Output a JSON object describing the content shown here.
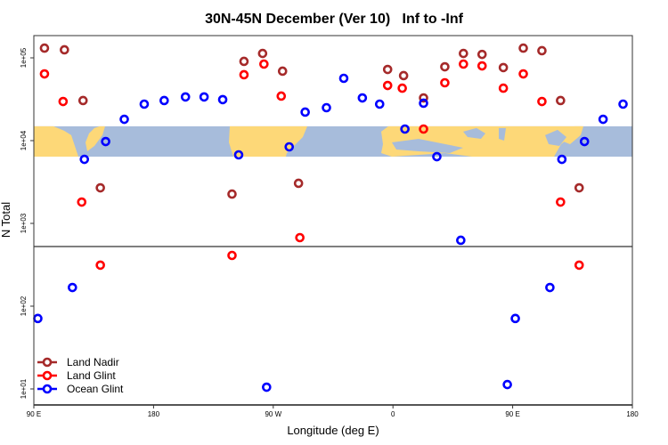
{
  "chart_data": {
    "type": "scatter",
    "title": "30N-45N December (Ver 10)   Inf to -Inf",
    "xlabel": "Longitude (deg E)",
    "ylabel": "N Total",
    "xlim": [
      90,
      540
    ],
    "ylim_log10": [
      0.806,
      5.27
    ],
    "yscale": "log",
    "x_ticks": [
      {
        "value": 90,
        "label": "90 E"
      },
      {
        "value": 180,
        "label": "180"
      },
      {
        "value": 270,
        "label": "90 W"
      },
      {
        "value": 360,
        "label": "0"
      },
      {
        "value": 450,
        "label": "90 E"
      },
      {
        "value": 540,
        "label": "180"
      }
    ],
    "y_ticks": [
      {
        "value": 100000,
        "label": "1e+05"
      },
      {
        "value": 10000,
        "label": "1e+04"
      },
      {
        "value": 1000,
        "label": "1e+03"
      },
      {
        "value": 100,
        "label": "1e+02"
      },
      {
        "value": 10,
        "label": "1e+01"
      }
    ],
    "reference_line_y": 525,
    "map_band": {
      "lat_range": "30N-45N",
      "n_range": [
        6400,
        14900
      ],
      "land_color": "#fdd878",
      "ocean_color": "#a7bcdb"
    },
    "legend_position": "bottom-left",
    "series": [
      {
        "name": "Land Nadir",
        "color": "#a52a2a",
        "points": [
          [
            98,
            131000
          ],
          [
            113,
            125000
          ],
          [
            127,
            30500
          ],
          [
            140,
            2690
          ],
          [
            239,
            2260
          ],
          [
            248,
            90600
          ],
          [
            262,
            113000
          ],
          [
            277,
            69000
          ],
          [
            289,
            3050
          ],
          [
            356,
            72400
          ],
          [
            368,
            61000
          ],
          [
            383,
            32800
          ],
          [
            399,
            78000
          ],
          [
            413,
            113000
          ],
          [
            427,
            110000
          ],
          [
            443,
            76300
          ],
          [
            458,
            131000
          ],
          [
            472,
            122000
          ],
          [
            486,
            30500
          ],
          [
            500,
            2690
          ]
        ]
      },
      {
        "name": "Land Glint",
        "color": "#ff0000",
        "points": [
          [
            98,
            64000
          ],
          [
            112,
            29700
          ],
          [
            126,
            1810
          ],
          [
            140,
            313
          ],
          [
            239,
            410
          ],
          [
            248,
            62500
          ],
          [
            263,
            84100
          ],
          [
            276,
            34500
          ],
          [
            290,
            673
          ],
          [
            356,
            46400
          ],
          [
            367,
            43000
          ],
          [
            383,
            13800
          ],
          [
            399,
            50000
          ],
          [
            413,
            84100
          ],
          [
            427,
            80000
          ],
          [
            443,
            43000
          ],
          [
            458,
            64000
          ],
          [
            472,
            29700
          ],
          [
            486,
            1810
          ],
          [
            500,
            313
          ]
        ]
      },
      {
        "name": "Ocean Glint",
        "color": "#0000ff",
        "points": [
          [
            93,
            71
          ],
          [
            119,
            168
          ],
          [
            128,
            5940
          ],
          [
            144,
            9750
          ],
          [
            158,
            18100
          ],
          [
            173,
            27600
          ],
          [
            188,
            30500
          ],
          [
            204,
            33700
          ],
          [
            218,
            33700
          ],
          [
            232,
            31300
          ],
          [
            244,
            6730
          ],
          [
            265,
            10.5
          ],
          [
            282,
            8410
          ],
          [
            294,
            22100
          ],
          [
            310,
            25000
          ],
          [
            323,
            56600
          ],
          [
            337,
            32800
          ],
          [
            350,
            27600
          ],
          [
            369,
            13800
          ],
          [
            383,
            28300
          ],
          [
            393,
            6400
          ],
          [
            411,
            625
          ],
          [
            446,
            11.3
          ],
          [
            452,
            71
          ],
          [
            478,
            168
          ],
          [
            487,
            5940
          ],
          [
            504,
            9750
          ],
          [
            518,
            18100
          ],
          [
            533,
            27600
          ]
        ]
      }
    ]
  }
}
